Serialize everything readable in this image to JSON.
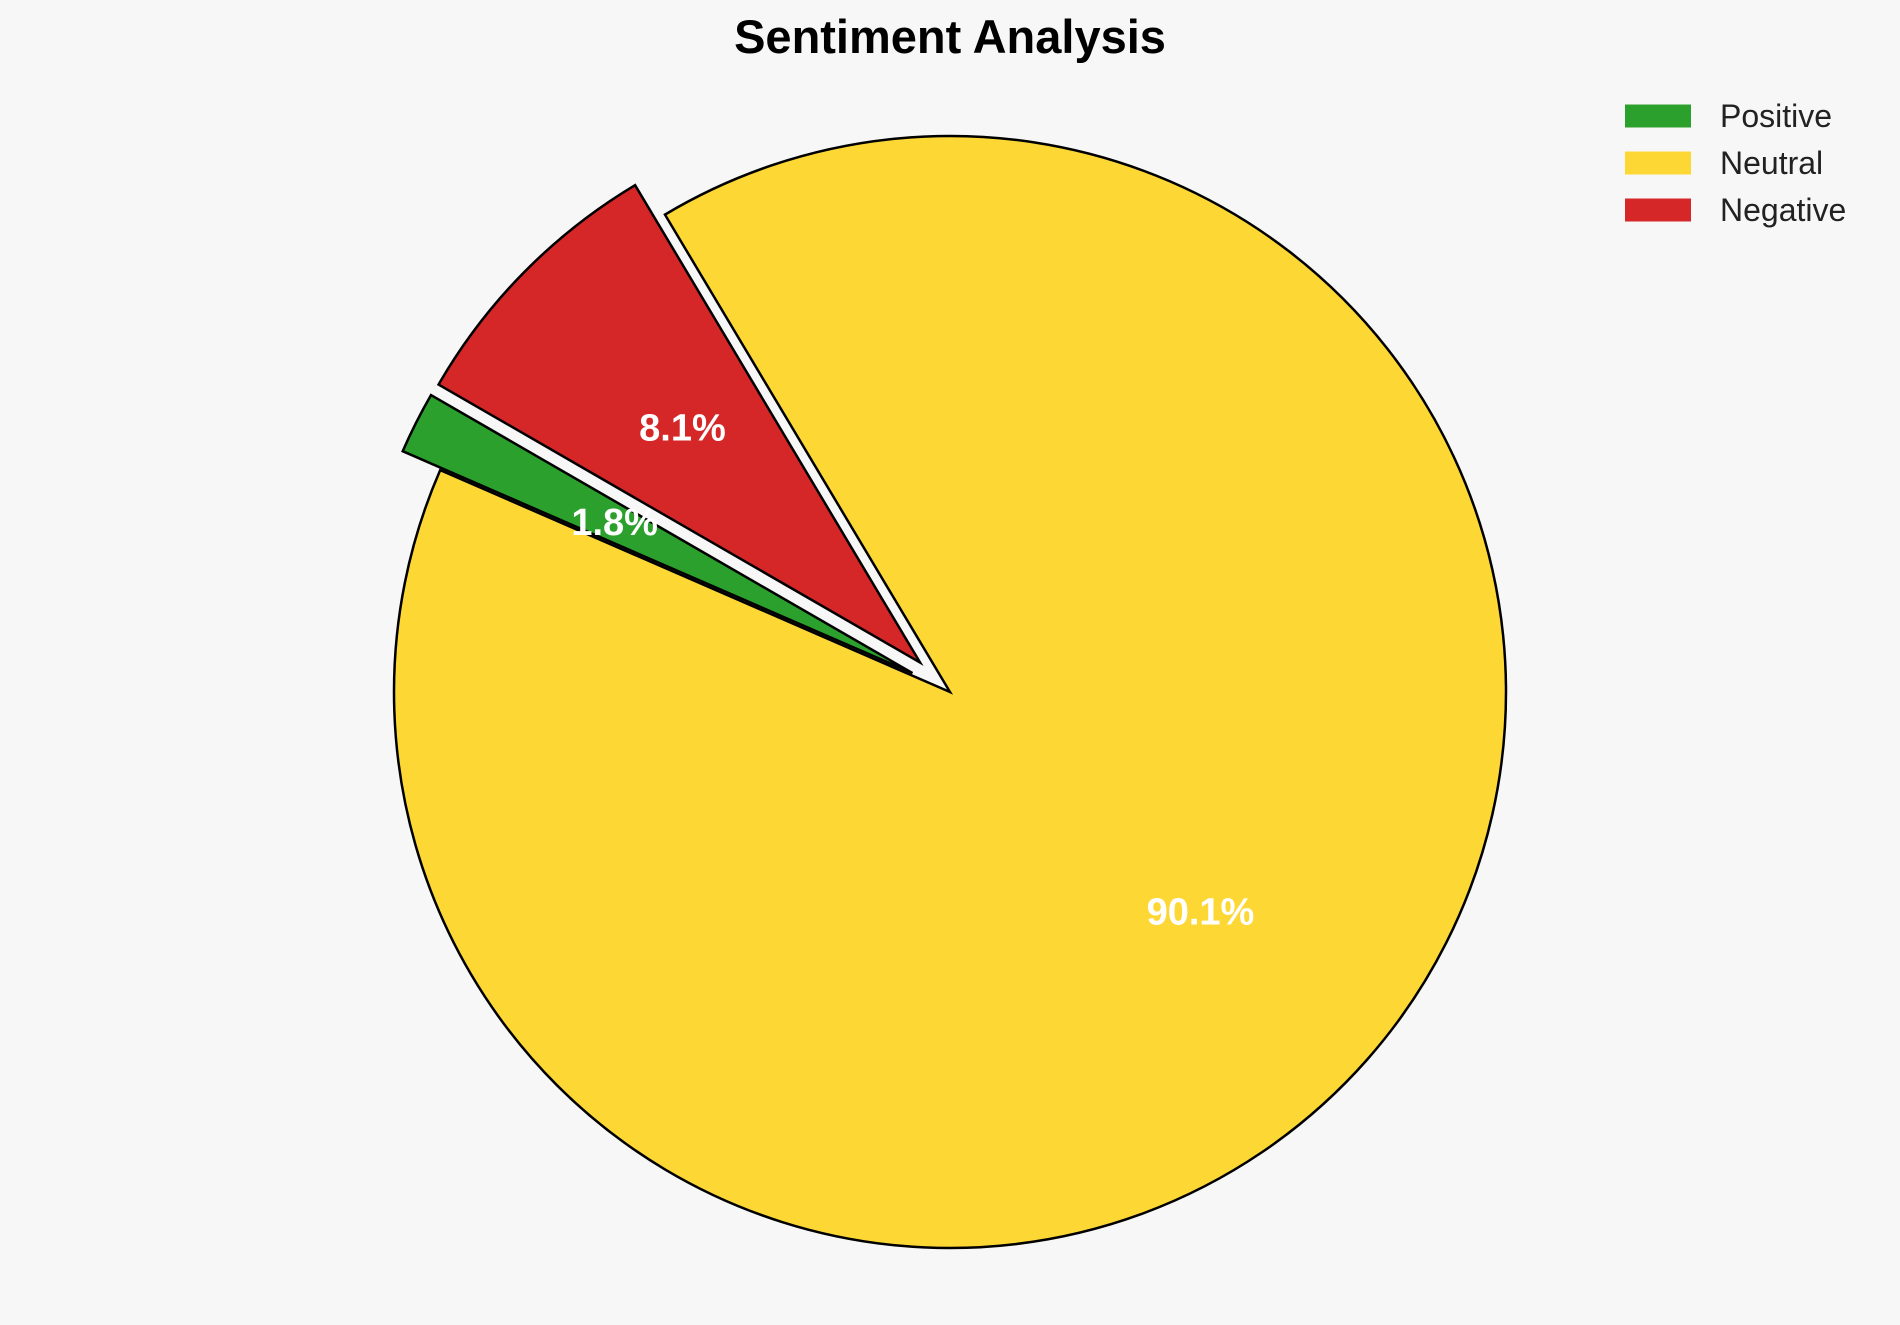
{
  "chart_data": {
    "type": "pie",
    "title": "Sentiment Analysis",
    "categories": [
      "Positive",
      "Neutral",
      "Negative"
    ],
    "values": [
      1.8,
      90.1,
      8.1
    ],
    "labels": [
      "1.8%",
      "90.1%",
      "8.1%"
    ],
    "colors": [
      "#2ca02c",
      "#fdd835",
      "#d62728"
    ],
    "exploded": [
      "Positive",
      "Negative"
    ],
    "legend_position": "top-right"
  }
}
